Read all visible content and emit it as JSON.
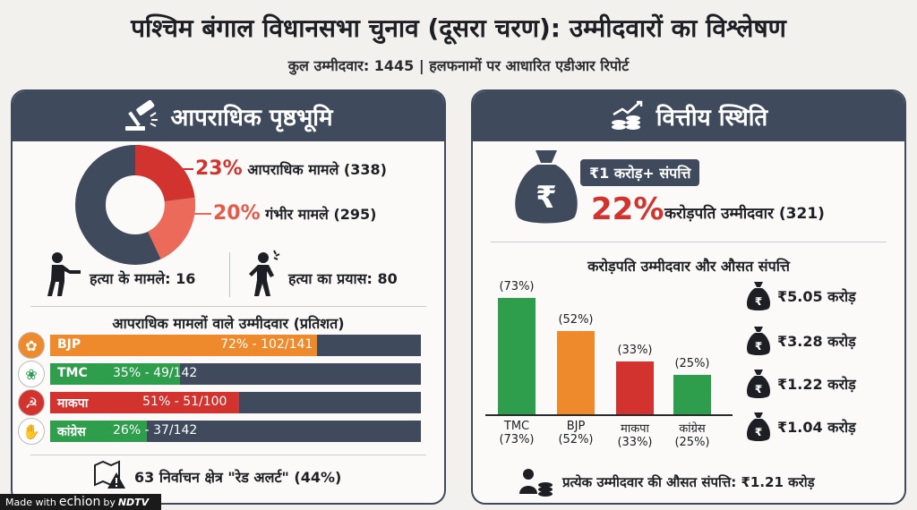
{
  "title": "पश्चिम बंगाल विधानसभा चुनाव (दूसरा चरण): उम्मीदवारों का विश्लेषण",
  "subtitle": "कुल उम्मीदवार: 1445 | हलफनामों पर आधारित एडीआर रिपोर्ट",
  "left": {
    "heading": "आपराधिक पृष्ठभूमि",
    "criminal_pct": "23%",
    "criminal_label": "आपराधिक मामले (338)",
    "serious_pct": "20%",
    "serious_label": "गंभीर मामले (295)",
    "murder_label": "हत्या के मामले: 16",
    "attempt_label": "हत्या का प्रयास: 80",
    "parties_title": "आपराधिक मामलों वाले उम्मीदवार (प्रतिशत)",
    "parties": [
      {
        "name": "BJP",
        "value": "72% - 102/141",
        "pct": 72,
        "color": "#ef8a2c"
      },
      {
        "name": "TMC",
        "value": "35% - 49/142",
        "pct": 35,
        "color": "#2e9d4c"
      },
      {
        "name": "माकपा",
        "value": "51% - 51/100",
        "pct": 51,
        "color": "#d2332e"
      },
      {
        "name": "कांग्रेस",
        "value": "26% - 37/142",
        "pct": 26,
        "color": "#2e9d4c"
      }
    ],
    "red_alert": "63 निर्वाचन क्षेत्र \"रेड अलर्ट\" (44%)"
  },
  "right": {
    "heading": "वित्तीय स्थिति",
    "tag": "₹1 करोड़+ संपत्ति",
    "crorepati_pct": "22%",
    "crorepati_label": "करोड़पति उम्मीदवार (321)",
    "chart_title": "करोड़पति उम्मीदवार और औसत संपत्ति",
    "avg_assets": [
      {
        "party": "TMC",
        "asset": "₹5.05 करोड़"
      },
      {
        "party": "BJP",
        "asset": "₹3.28 करोड़"
      },
      {
        "party": "माकपा",
        "asset": "₹1.22 करोड़"
      },
      {
        "party": "कांग्रेस",
        "asset": "₹1.04 करोड़"
      }
    ],
    "avg_overall": "प्रत्येक उम्मीदवार की औसत संपत्ति: ₹1.21 करोड़"
  },
  "chart_data": {
    "type": "bar",
    "title": "करोड़पति उम्मीदवार और औसत संपत्ति",
    "categories": [
      "TMC",
      "BJP",
      "माकपा",
      "कांग्रेस"
    ],
    "values": [
      73,
      52,
      33,
      25
    ],
    "value_labels": [
      "(73%)",
      "(52%)",
      "(33%)",
      "(25%)"
    ],
    "category_labels": [
      "TMC\n(73%)",
      "BJP\n(52%)",
      "माकपा\n(33%)",
      "कांग्रेस\n(25%)"
    ],
    "colors": [
      "#2e9d4c",
      "#ef8a2c",
      "#d2332e",
      "#2e9d4c"
    ],
    "ylim": [
      0,
      80
    ],
    "xlabel": "",
    "ylabel": ""
  },
  "donut": {
    "criminal": 23,
    "serious": 20
  },
  "watermark": {
    "made_with": "Made with",
    "brand": "echion",
    "by": "by",
    "org": "NDTV"
  }
}
